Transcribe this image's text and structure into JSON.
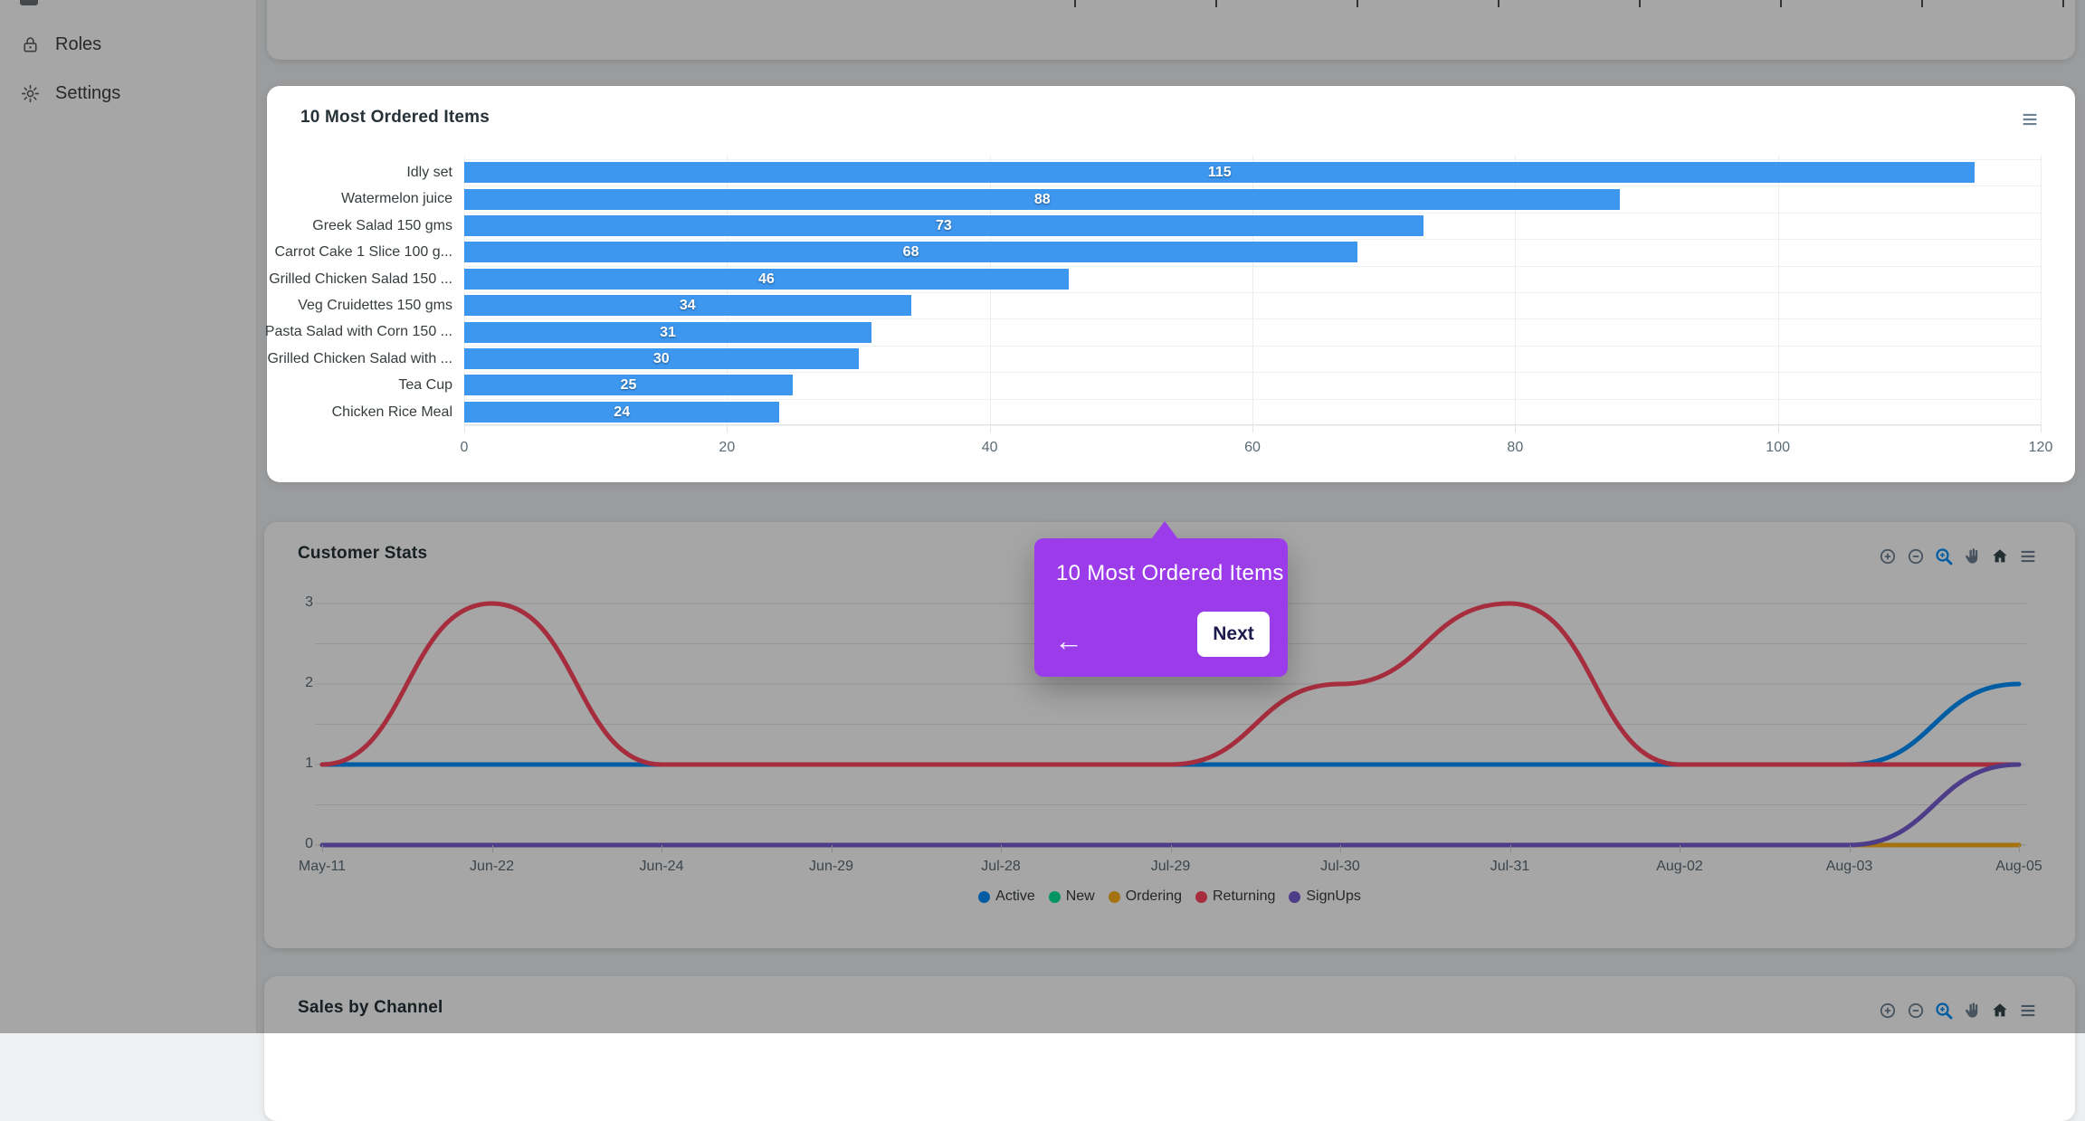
{
  "sidebar": {
    "items": [
      {
        "label": "Roles",
        "icon": "lock-icon"
      },
      {
        "label": "Settings",
        "icon": "gear-icon"
      }
    ]
  },
  "tour_tooltip": {
    "title": "10 Most Ordered Items",
    "next_label": "Next",
    "back_icon": "arrow-left-icon",
    "accent_color": "#9B3BE9"
  },
  "toolbar": {
    "icons": [
      "zoom-in-icon",
      "zoom-out-icon",
      "selection-zoom-icon",
      "pan-icon",
      "home-icon",
      "menu-icon"
    ],
    "icon_color": "#6e8192",
    "active_tool_color": "#008FFB"
  },
  "chart_data": [
    {
      "type": "bar",
      "orientation": "horizontal",
      "title": "10 Most Ordered Items",
      "categories": [
        "Idly set",
        "Watermelon juice",
        "Greek Salad 150 gms",
        "Carrot Cake 1 Slice 100 g...",
        "Grilled Chicken Salad 150 ...",
        "Veg Cruidettes 150 gms",
        "Pasta Salad with Corn 150 ...",
        "Grilled Chicken Salad with ...",
        "Tea Cup",
        "Chicken Rice Meal"
      ],
      "values": [
        115,
        88,
        73,
        68,
        46,
        34,
        31,
        30,
        25,
        24
      ],
      "bar_color": "#3D97EF",
      "xticks": [
        0,
        20,
        40,
        60,
        80,
        100,
        120
      ],
      "xlim": [
        0,
        120
      ],
      "grid": true,
      "data_labels": "centered-white"
    },
    {
      "type": "line",
      "title": "Customer Stats",
      "curve": "smooth",
      "x": [
        "May-11",
        "Jun-22",
        "Jun-24",
        "Jun-29",
        "Jul-28",
        "Jul-29",
        "Jul-30",
        "Jul-31",
        "Aug-02",
        "Aug-03",
        "Aug-05"
      ],
      "series": [
        {
          "name": "Active",
          "color": "#008FFB",
          "values": [
            1,
            1,
            1,
            1,
            1,
            1,
            1,
            1,
            1,
            1,
            2
          ]
        },
        {
          "name": "New",
          "color": "#00E396",
          "values": [
            0,
            0,
            0,
            0,
            0,
            0,
            0,
            0,
            0,
            0,
            0
          ]
        },
        {
          "name": "Ordering",
          "color": "#FEB019",
          "values": [
            0,
            0,
            0,
            0,
            0,
            0,
            0,
            0,
            0,
            0,
            0
          ]
        },
        {
          "name": "Returning",
          "color": "#FF4560",
          "values": [
            1,
            3,
            1,
            1,
            1,
            1,
            2,
            3,
            1,
            1,
            1
          ]
        },
        {
          "name": "SignUps",
          "color": "#775DD0",
          "values": [
            0,
            0,
            0,
            0,
            0,
            0,
            0,
            0,
            0,
            0,
            1
          ]
        }
      ],
      "yticks": [
        0,
        1,
        2,
        3
      ],
      "ylim": [
        0,
        3
      ],
      "grid": true,
      "legend_position": "bottom"
    },
    {
      "title": "Sales by Channel"
    }
  ]
}
